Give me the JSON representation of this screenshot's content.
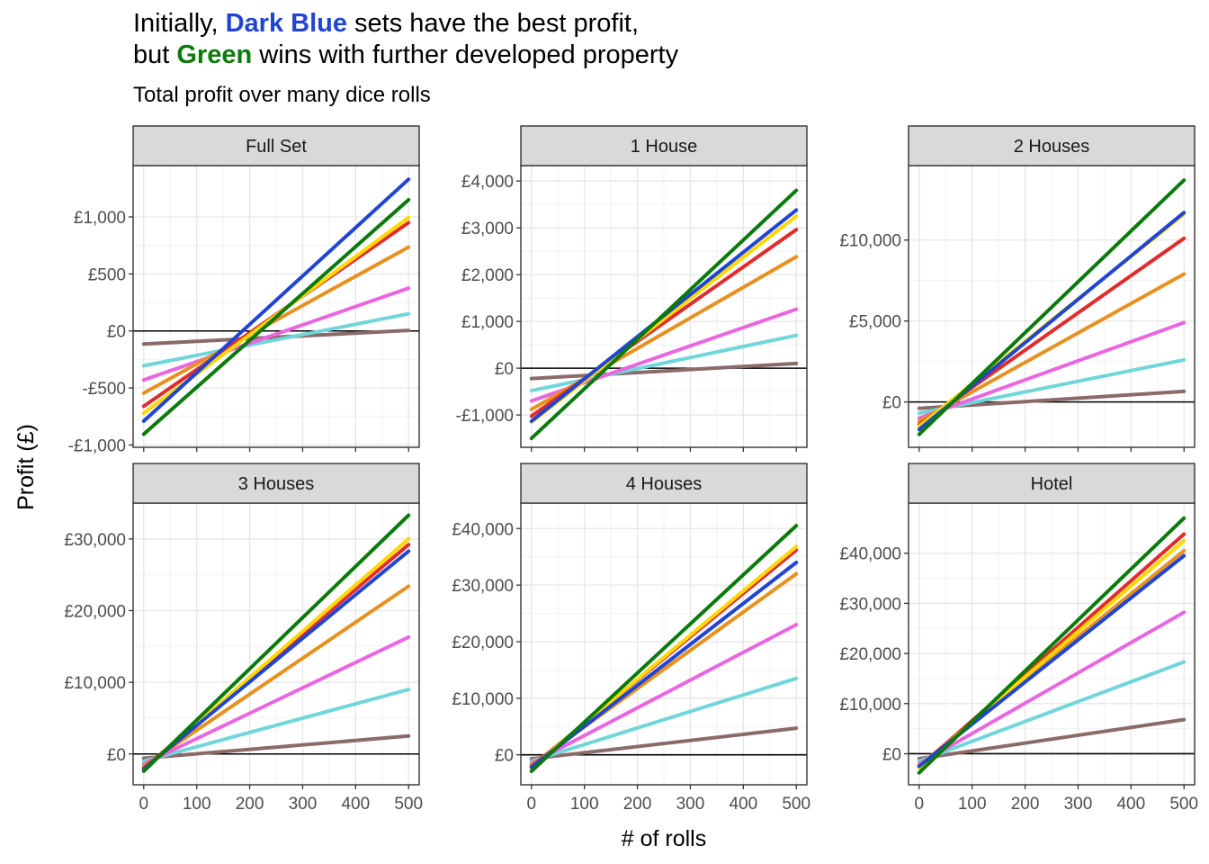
{
  "title": {
    "line1_pre": "Initially, ",
    "line1_hl": "Dark Blue",
    "line1_post": " sets have the best profit,",
    "line2_pre": "but ",
    "line2_hl": "Green",
    "line2_post": " wins with further developed property"
  },
  "subtitle": "Total profit over many dice rolls",
  "xlabel": "# of rolls",
  "ylabel": "Profit (£)",
  "colors": {
    "highlight_dark_blue": "#2045d4",
    "highlight_green": "#0a7a0a"
  },
  "chart_data": [
    {
      "type": "line",
      "panel": "Full Set",
      "xlim": [
        -20,
        520
      ],
      "ylim": [
        -1020,
        1450
      ],
      "x_ticks": [
        0,
        100,
        200,
        300,
        400,
        500
      ],
      "y_ticks": [
        -1000,
        -500,
        0,
        500,
        1000
      ],
      "y_tick_labels": [
        "-£1,000",
        "-£500",
        "£0",
        "£500",
        "£1,000"
      ],
      "series": [
        {
          "color": "#8b6a6a",
          "x": [
            0,
            500
          ],
          "y": [
            -115,
            5
          ]
        },
        {
          "color": "#70d6da",
          "x": [
            0,
            500
          ],
          "y": [
            -305,
            150
          ]
        },
        {
          "color": "#ea65e0",
          "x": [
            0,
            500
          ],
          "y": [
            -430,
            375
          ]
        },
        {
          "color": "#e7911f",
          "x": [
            0,
            500
          ],
          "y": [
            -545,
            735
          ]
        },
        {
          "color": "#e22b2b",
          "x": [
            0,
            500
          ],
          "y": [
            -660,
            950
          ]
        },
        {
          "color": "#ffd800",
          "x": [
            0,
            500
          ],
          "y": [
            -720,
            995
          ]
        },
        {
          "color": "#2045d4",
          "x": [
            0,
            500
          ],
          "y": [
            -790,
            1330
          ]
        },
        {
          "color": "#0a7a0a",
          "x": [
            0,
            500
          ],
          "y": [
            -905,
            1150
          ]
        }
      ]
    },
    {
      "type": "line",
      "panel": "1 House",
      "xlim": [
        -20,
        520
      ],
      "ylim": [
        -1690,
        4330
      ],
      "x_ticks": [
        0,
        100,
        200,
        300,
        400,
        500
      ],
      "y_ticks": [
        -1000,
        0,
        1000,
        2000,
        3000,
        4000
      ],
      "y_tick_labels": [
        "-£1,000",
        "£0",
        "£1,000",
        "£2,000",
        "£3,000",
        "£4,000"
      ],
      "series": [
        {
          "color": "#8b6a6a",
          "x": [
            0,
            500
          ],
          "y": [
            -220,
            100
          ]
        },
        {
          "color": "#70d6da",
          "x": [
            0,
            500
          ],
          "y": [
            -480,
            700
          ]
        },
        {
          "color": "#ea65e0",
          "x": [
            0,
            500
          ],
          "y": [
            -700,
            1260
          ]
        },
        {
          "color": "#e7911f",
          "x": [
            0,
            500
          ],
          "y": [
            -880,
            2380
          ]
        },
        {
          "color": "#e22b2b",
          "x": [
            0,
            500
          ],
          "y": [
            -1020,
            2960
          ]
        },
        {
          "color": "#ffd800",
          "x": [
            0,
            500
          ],
          "y": [
            -1150,
            3250
          ]
        },
        {
          "color": "#2045d4",
          "x": [
            0,
            500
          ],
          "y": [
            -1130,
            3380
          ]
        },
        {
          "color": "#0a7a0a",
          "x": [
            0,
            500
          ],
          "y": [
            -1500,
            3800
          ]
        }
      ]
    },
    {
      "type": "line",
      "panel": "2 Houses",
      "xlim": [
        -20,
        520
      ],
      "ylim": [
        -2800,
        14600
      ],
      "x_ticks": [
        0,
        100,
        200,
        300,
        400,
        500
      ],
      "y_ticks": [
        0,
        5000,
        10000
      ],
      "y_tick_labels": [
        "£0",
        "£5,000",
        "£10,000"
      ],
      "series": [
        {
          "color": "#8b6a6a",
          "x": [
            0,
            500
          ],
          "y": [
            -400,
            650
          ]
        },
        {
          "color": "#70d6da",
          "x": [
            0,
            500
          ],
          "y": [
            -700,
            2600
          ]
        },
        {
          "color": "#ea65e0",
          "x": [
            0,
            500
          ],
          "y": [
            -1000,
            4900
          ]
        },
        {
          "color": "#e7911f",
          "x": [
            0,
            500
          ],
          "y": [
            -1200,
            7900
          ]
        },
        {
          "color": "#e22b2b",
          "x": [
            0,
            500
          ],
          "y": [
            -1400,
            10100
          ]
        },
        {
          "color": "#ffd800",
          "x": [
            0,
            500
          ],
          "y": [
            -1500,
            11600
          ]
        },
        {
          "color": "#2045d4",
          "x": [
            0,
            500
          ],
          "y": [
            -1700,
            11700
          ]
        },
        {
          "color": "#0a7a0a",
          "x": [
            0,
            500
          ],
          "y": [
            -2000,
            13700
          ]
        }
      ]
    },
    {
      "type": "line",
      "panel": "3 Houses",
      "xlim": [
        -20,
        520
      ],
      "ylim": [
        -4300,
        35000
      ],
      "x_ticks": [
        0,
        100,
        200,
        300,
        400,
        500
      ],
      "y_ticks": [
        0,
        10000,
        20000,
        30000
      ],
      "y_tick_labels": [
        "£0",
        "£10,000",
        "£20,000",
        "£30,000"
      ],
      "series": [
        {
          "color": "#8b6a6a",
          "x": [
            0,
            500
          ],
          "y": [
            -600,
            2500
          ]
        },
        {
          "color": "#70d6da",
          "x": [
            0,
            500
          ],
          "y": [
            -1000,
            9000
          ]
        },
        {
          "color": "#ea65e0",
          "x": [
            0,
            500
          ],
          "y": [
            -1400,
            16300
          ]
        },
        {
          "color": "#e7911f",
          "x": [
            0,
            500
          ],
          "y": [
            -1700,
            23400
          ]
        },
        {
          "color": "#e22b2b",
          "x": [
            0,
            500
          ],
          "y": [
            -2000,
            29200
          ]
        },
        {
          "color": "#ffd800",
          "x": [
            0,
            500
          ],
          "y": [
            -2200,
            30000
          ]
        },
        {
          "color": "#2045d4",
          "x": [
            0,
            500
          ],
          "y": [
            -2100,
            28300
          ]
        },
        {
          "color": "#0a7a0a",
          "x": [
            0,
            500
          ],
          "y": [
            -2400,
            33300
          ]
        }
      ]
    },
    {
      "type": "line",
      "panel": "4 Houses",
      "xlim": [
        -20,
        520
      ],
      "ylim": [
        -5300,
        44500
      ],
      "x_ticks": [
        0,
        100,
        200,
        300,
        400,
        500
      ],
      "y_ticks": [
        0,
        10000,
        20000,
        30000,
        40000
      ],
      "y_tick_labels": [
        "£0",
        "£10,000",
        "£20,000",
        "£30,000",
        "£40,000"
      ],
      "series": [
        {
          "color": "#8b6a6a",
          "x": [
            0,
            500
          ],
          "y": [
            -700,
            4700
          ]
        },
        {
          "color": "#70d6da",
          "x": [
            0,
            500
          ],
          "y": [
            -1100,
            13500
          ]
        },
        {
          "color": "#ea65e0",
          "x": [
            0,
            500
          ],
          "y": [
            -1500,
            23000
          ]
        },
        {
          "color": "#e7911f",
          "x": [
            0,
            500
          ],
          "y": [
            -1800,
            32000
          ]
        },
        {
          "color": "#e22b2b",
          "x": [
            0,
            500
          ],
          "y": [
            -2100,
            36200
          ]
        },
        {
          "color": "#ffd800",
          "x": [
            0,
            500
          ],
          "y": [
            -2300,
            36800
          ]
        },
        {
          "color": "#2045d4",
          "x": [
            0,
            500
          ],
          "y": [
            -2200,
            34000
          ]
        },
        {
          "color": "#0a7a0a",
          "x": [
            0,
            500
          ],
          "y": [
            -2900,
            40500
          ]
        }
      ]
    },
    {
      "type": "line",
      "panel": "Hotel",
      "xlim": [
        -20,
        520
      ],
      "ylim": [
        -6200,
        50000
      ],
      "x_ticks": [
        0,
        100,
        200,
        300,
        400,
        500
      ],
      "y_ticks": [
        0,
        10000,
        20000,
        30000,
        40000
      ],
      "y_tick_labels": [
        "£0",
        "£10,000",
        "£20,000",
        "£30,000",
        "£40,000"
      ],
      "series": [
        {
          "color": "#8b6a6a",
          "x": [
            0,
            500
          ],
          "y": [
            -1000,
            6800
          ]
        },
        {
          "color": "#70d6da",
          "x": [
            0,
            500
          ],
          "y": [
            -1500,
            18300
          ]
        },
        {
          "color": "#ea65e0",
          "x": [
            0,
            500
          ],
          "y": [
            -2000,
            28200
          ]
        },
        {
          "color": "#e7911f",
          "x": [
            0,
            500
          ],
          "y": [
            -2400,
            40500
          ]
        },
        {
          "color": "#e22b2b",
          "x": [
            0,
            500
          ],
          "y": [
            -2700,
            43800
          ]
        },
        {
          "color": "#ffd800",
          "x": [
            0,
            500
          ],
          "y": [
            -2800,
            42500
          ]
        },
        {
          "color": "#2045d4",
          "x": [
            0,
            500
          ],
          "y": [
            -2500,
            39500
          ]
        },
        {
          "color": "#0a7a0a",
          "x": [
            0,
            500
          ],
          "y": [
            -3800,
            47000
          ]
        }
      ]
    }
  ]
}
